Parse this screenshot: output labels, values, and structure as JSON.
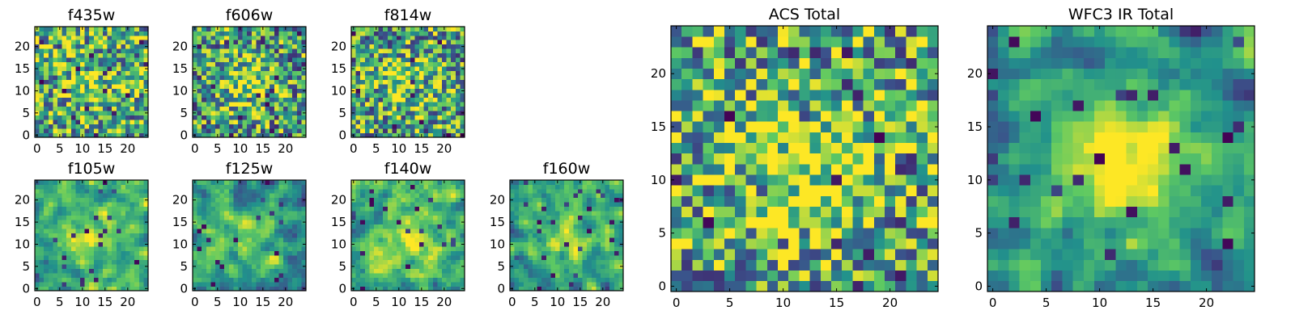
{
  "chart_data": [
    {
      "type": "heatmap",
      "title": "f435w",
      "xticks": [
        0,
        5,
        10,
        15,
        20
      ],
      "yticks": [
        0,
        5,
        10,
        15,
        20
      ],
      "grid_size": 25,
      "colormap": "viridis",
      "seed": 11,
      "smooth": 0,
      "center_boost": 0.15,
      "base": 0.62
    },
    {
      "type": "heatmap",
      "title": "f606w",
      "xticks": [
        0,
        5,
        10,
        15,
        20
      ],
      "yticks": [
        0,
        5,
        10,
        15,
        20
      ],
      "grid_size": 25,
      "colormap": "viridis",
      "seed": 23,
      "smooth": 0,
      "center_boost": 0.35,
      "base": 0.55
    },
    {
      "type": "heatmap",
      "title": "f814w",
      "xticks": [
        0,
        5,
        10,
        15,
        20
      ],
      "yticks": [
        0,
        5,
        10,
        15,
        20
      ],
      "grid_size": 25,
      "colormap": "viridis",
      "seed": 37,
      "smooth": 0,
      "center_boost": 0.25,
      "base": 0.58
    },
    {
      "type": "heatmap",
      "title": "f105w",
      "xticks": [
        0,
        5,
        10,
        15,
        20
      ],
      "yticks": [
        0,
        5,
        10,
        15,
        20
      ],
      "grid_size": 25,
      "colormap": "viridis",
      "seed": 41,
      "smooth": 1,
      "center_boost": 0.3,
      "base": 0.6
    },
    {
      "type": "heatmap",
      "title": "f125w",
      "xticks": [
        0,
        5,
        10,
        15,
        20
      ],
      "yticks": [
        0,
        5,
        10,
        15,
        20
      ],
      "grid_size": 25,
      "colormap": "viridis",
      "seed": 53,
      "smooth": 1,
      "center_boost": 0.2,
      "base": 0.55
    },
    {
      "type": "heatmap",
      "title": "f140w",
      "xticks": [
        0,
        5,
        10,
        15,
        20
      ],
      "yticks": [
        0,
        5,
        10,
        15,
        20
      ],
      "grid_size": 25,
      "colormap": "viridis",
      "seed": 67,
      "smooth": 1,
      "center_boost": 0.25,
      "base": 0.65
    },
    {
      "type": "heatmap",
      "title": "f160w",
      "xticks": [
        0,
        5,
        10,
        15,
        20
      ],
      "yticks": [
        0,
        5,
        10,
        15,
        20
      ],
      "grid_size": 25,
      "colormap": "viridis",
      "seed": 79,
      "smooth": 1,
      "center_boost": 0.3,
      "base": 0.58
    },
    {
      "type": "heatmap",
      "title": "ACS Total",
      "xticks": [
        0,
        5,
        10,
        15,
        20
      ],
      "yticks": [
        0,
        5,
        10,
        15,
        20
      ],
      "grid_size": 25,
      "colormap": "viridis",
      "seed": 97,
      "smooth": 0,
      "center_boost": 0.3,
      "base": 0.6
    },
    {
      "type": "heatmap",
      "title": "WFC3 IR Total",
      "xticks": [
        0,
        5,
        10,
        15,
        20
      ],
      "yticks": [
        0,
        5,
        10,
        15,
        20
      ],
      "grid_size": 25,
      "colormap": "viridis",
      "seed": 113,
      "smooth": 1,
      "center_boost": 0.55,
      "base": 0.5
    }
  ],
  "colors": {
    "viridis_stops": [
      "#440154",
      "#3b528b",
      "#21918c",
      "#5ec962",
      "#fde725"
    ]
  }
}
